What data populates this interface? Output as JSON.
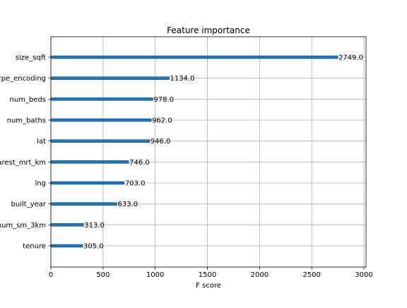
{
  "chart_data": {
    "type": "bar",
    "orientation": "horizontal",
    "title": "Feature importance",
    "xlabel": "F score",
    "ylabel": "",
    "xlim": [
      0,
      3020
    ],
    "x_ticks": [
      0,
      500,
      1000,
      1500,
      2000,
      2500,
      3000
    ],
    "grid": true,
    "legend": "none",
    "bar_color": "#1f77b4",
    "categories": [
      "size_sqft",
      "type_encoding",
      "num_beds",
      "num_baths",
      "lat",
      "nearest_mrt_km",
      "lng",
      "built_year",
      "num_sm_3km",
      "tenure"
    ],
    "category_labels_visible": [
      "size_sqft",
      "rpe_encoding",
      "num_beds",
      "num_baths",
      "lat",
      "arest_mrt_km",
      "lng",
      "built_year",
      "num_sm_3km",
      "tenure"
    ],
    "values": [
      2749.0,
      1134.0,
      978.0,
      962.0,
      946.0,
      746.0,
      703.0,
      633.0,
      313.0,
      305.0
    ],
    "value_labels": [
      "2749.0",
      "1134.0",
      "978.0",
      "962.0",
      "946.0",
      "746.0",
      "703.0",
      "633.0",
      "313.0",
      "305.0"
    ]
  }
}
